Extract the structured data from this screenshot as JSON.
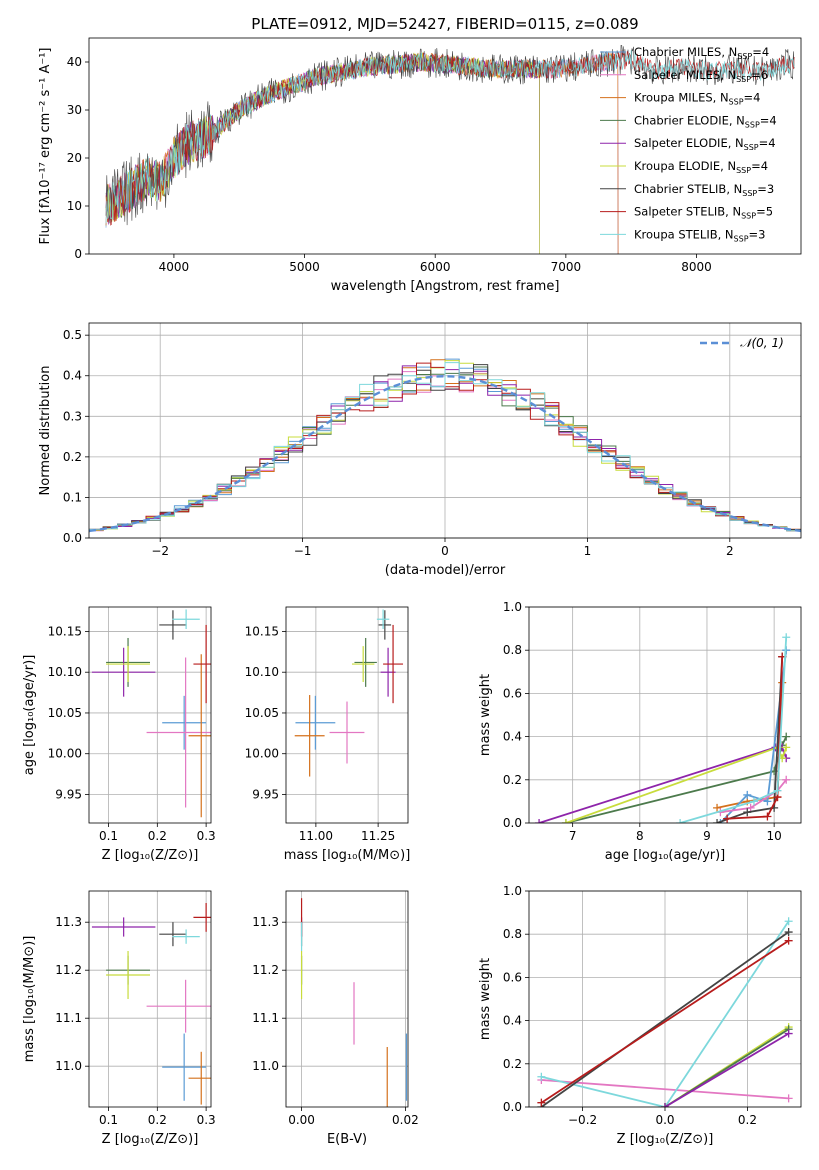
{
  "figure": {
    "title": "PLATE=0912, MJD=52427, FIBERID=0115, z=0.089"
  },
  "colors": {
    "Chabrier MILES": "#5b9bd5",
    "Salpeter MILES": "#e377c2",
    "Kroupa MILES": "#d4711c",
    "Chabrier ELODIE": "#4c7a4c",
    "Salpeter ELODIE": "#8e24aa",
    "Kroupa ELODIE": "#c8dc3c",
    "Chabrier STELIB": "#444444",
    "Salpeter STELIB": "#b71c1c",
    "Kroupa STELIB": "#7dd8dc",
    "normal": "#5b8fd6",
    "grid": "#b0b0b0"
  },
  "chart_data": [
    {
      "id": "spectrum",
      "type": "line",
      "title": "PLATE=0912, MJD=52427, FIBERID=0115, z=0.089",
      "xlabel": "wavelength [Angstrom, rest frame]",
      "ylabel": "Flux [fλ10⁻¹⁷ erg cm⁻² s⁻¹ A⁻¹]",
      "xlim": [
        3350,
        8800
      ],
      "ylim": [
        0,
        45
      ],
      "xticks": [
        4000,
        5000,
        6000,
        7000,
        8000
      ],
      "yticks": [
        0,
        10,
        20,
        30,
        40
      ],
      "grid": false,
      "legend": "top-right",
      "continuum": {
        "x": [
          3500,
          3600,
          3700,
          3800,
          3900,
          4000,
          4100,
          4200,
          4300,
          4400,
          4500,
          4700,
          4900,
          5100,
          5300,
          5500,
          5700,
          5900,
          6100,
          6300,
          6500,
          6700,
          6900,
          7100,
          7300,
          7500,
          7700,
          7900,
          8100,
          8300,
          8500,
          8700
        ],
        "y": [
          10,
          12,
          14,
          16,
          15,
          20,
          23,
          24,
          25,
          28,
          30,
          33,
          35,
          37,
          38,
          39,
          39.5,
          40,
          39.5,
          39,
          38.5,
          38.5,
          38.5,
          39,
          40,
          40.5,
          38,
          39,
          38,
          38.5,
          38,
          39.5
        ]
      },
      "series": [
        {
          "name": "Chabrier MILES",
          "label": "Chabrier MILES, N",
          "nssp": "=4",
          "xmax": 7400
        },
        {
          "name": "Salpeter MILES",
          "label": "Salpeter MILES, N",
          "nssp": "=6",
          "xmax": 7400
        },
        {
          "name": "Kroupa MILES",
          "label": "Kroupa MILES, N",
          "nssp": "=4",
          "xmax": 7400
        },
        {
          "name": "Chabrier ELODIE",
          "label": "Chabrier ELODIE, N",
          "nssp": "=4",
          "xmax": 6800
        },
        {
          "name": "Salpeter ELODIE",
          "label": "Salpeter ELODIE, N",
          "nssp": "=4",
          "xmax": 6800
        },
        {
          "name": "Kroupa ELODIE",
          "label": "Kroupa ELODIE, N",
          "nssp": "=4",
          "xmax": 6800
        },
        {
          "name": "Chabrier STELIB",
          "label": "Chabrier STELIB, N",
          "nssp": "=3",
          "xmax": 8750
        },
        {
          "name": "Salpeter STELIB",
          "label": "Salpeter STELIB, N",
          "nssp": "=5",
          "xmax": 8750
        },
        {
          "name": "Kroupa STELIB",
          "label": "Kroupa STELIB, N",
          "nssp": "=3",
          "xmax": 8750
        }
      ]
    },
    {
      "id": "residuals",
      "type": "histogram",
      "xlabel": "(data-model)/error",
      "ylabel": "Normed distribution",
      "xlim": [
        -2.5,
        2.5
      ],
      "ylim": [
        0,
        0.53
      ],
      "xticks": [
        -2,
        -1,
        0,
        1,
        2
      ],
      "yticks": [
        0.0,
        0.1,
        0.2,
        0.3,
        0.4,
        0.5
      ],
      "grid": true,
      "legend": "top-right",
      "normal_label": "𝒩(0, 1)",
      "bin_width": 0.1
    },
    {
      "id": "age_vs_Z",
      "type": "errorbar",
      "xlabel": "Z [log₁₀(Z/Z⊙)]",
      "ylabel": "age  [log₁₀(age/yr)]",
      "xlim": [
        0.06,
        0.31
      ],
      "ylim": [
        9.915,
        10.18
      ],
      "xticks": [
        0.1,
        0.2,
        0.3
      ],
      "yticks": [
        9.95,
        10.0,
        10.05,
        10.1,
        10.15
      ],
      "grid": true,
      "points": [
        {
          "series": "Chabrier MILES",
          "x": 0.255,
          "y": 10.038,
          "xerr": 0.045,
          "yerr": 0.033
        },
        {
          "series": "Salpeter MILES",
          "x": 0.258,
          "y": 10.026,
          "xerr": 0.08,
          "yerr": 0.092
        },
        {
          "series": "Kroupa MILES",
          "x": 0.29,
          "y": 10.022,
          "xerr": 0.026,
          "yerr": 0.1
        },
        {
          "series": "Chabrier ELODIE",
          "x": 0.14,
          "y": 10.112,
          "xerr": 0.045,
          "yerr": 0.03
        },
        {
          "series": "Salpeter ELODIE",
          "x": 0.131,
          "y": 10.1,
          "xerr": 0.065,
          "yerr": 0.03
        },
        {
          "series": "Kroupa ELODIE",
          "x": 0.14,
          "y": 10.11,
          "xerr": 0.045,
          "yerr": 0.022
        },
        {
          "series": "Chabrier STELIB",
          "x": 0.232,
          "y": 10.158,
          "xerr": 0.028,
          "yerr": 0.018
        },
        {
          "series": "Salpeter STELIB",
          "x": 0.3,
          "y": 10.11,
          "xerr": 0.026,
          "yerr": 0.048
        },
        {
          "series": "Kroupa STELIB",
          "x": 0.259,
          "y": 10.165,
          "xerr": 0.028,
          "yerr": 0.012
        }
      ]
    },
    {
      "id": "age_vs_mass",
      "type": "errorbar",
      "xlabel": "mass [log₁₀(M/M⊙)]",
      "ylabel": "",
      "xlim": [
        10.88,
        11.37
      ],
      "ylim": [
        9.915,
        10.18
      ],
      "xticks": [
        11.0,
        11.25
      ],
      "yticks": [
        9.95,
        10.0,
        10.05,
        10.1,
        10.15
      ],
      "grid": true,
      "points": [
        {
          "series": "Chabrier MILES",
          "x": 10.998,
          "y": 10.038,
          "xerr": 0.08,
          "yerr": 0.033
        },
        {
          "series": "Salpeter MILES",
          "x": 11.125,
          "y": 10.026,
          "xerr": 0.07,
          "yerr": 0.038
        },
        {
          "series": "Kroupa MILES",
          "x": 10.975,
          "y": 10.022,
          "xerr": 0.06,
          "yerr": 0.05
        },
        {
          "series": "Chabrier ELODIE",
          "x": 11.2,
          "y": 10.112,
          "xerr": 0.045,
          "yerr": 0.03
        },
        {
          "series": "Salpeter ELODIE",
          "x": 11.29,
          "y": 10.1,
          "xerr": 0.03,
          "yerr": 0.03
        },
        {
          "series": "Kroupa ELODIE",
          "x": 11.19,
          "y": 10.11,
          "xerr": 0.045,
          "yerr": 0.022
        },
        {
          "series": "Chabrier STELIB",
          "x": 11.277,
          "y": 10.158,
          "xerr": 0.025,
          "yerr": 0.018
        },
        {
          "series": "Salpeter STELIB",
          "x": 11.31,
          "y": 10.11,
          "xerr": 0.04,
          "yerr": 0.048
        },
        {
          "series": "Kroupa STELIB",
          "x": 11.27,
          "y": 10.165,
          "xerr": 0.025,
          "yerr": 0.012
        }
      ]
    },
    {
      "id": "weight_vs_age",
      "type": "line",
      "xlabel": "age  [log₁₀(age/yr)]",
      "ylabel": "mass weight",
      "xlim": [
        6.35,
        10.4
      ],
      "ylim": [
        0,
        1
      ],
      "xticks": [
        7,
        8,
        9,
        10
      ],
      "yticks": [
        0.0,
        0.2,
        0.4,
        0.6,
        0.8,
        1.0
      ],
      "grid": true,
      "series": [
        {
          "name": "Chabrier ELODIE",
          "x": [
            6.9,
            10.0,
            10.12,
            10.18
          ],
          "y": [
            0.0,
            0.24,
            0.36,
            0.4
          ]
        },
        {
          "name": "Salpeter ELODIE",
          "x": [
            6.5,
            10.02,
            10.12,
            10.18
          ],
          "y": [
            0.0,
            0.35,
            0.35,
            0.3
          ]
        },
        {
          "name": "Kroupa ELODIE",
          "x": [
            6.9,
            10.05,
            10.12,
            10.18
          ],
          "y": [
            0.0,
            0.35,
            0.3,
            0.35
          ]
        },
        {
          "name": "Kroupa MILES",
          "x": [
            9.15,
            9.6,
            10.05,
            10.12
          ],
          "y": [
            0.07,
            0.1,
            0.12,
            0.65
          ]
        },
        {
          "name": "Chabrier MILES",
          "x": [
            9.2,
            9.6,
            9.9,
            10.18
          ],
          "y": [
            0.0,
            0.13,
            0.1,
            0.8
          ]
        },
        {
          "name": "Salpeter MILES",
          "x": [
            9.2,
            9.65,
            10.05,
            10.18
          ],
          "y": [
            0.05,
            0.07,
            0.15,
            0.2
          ]
        },
        {
          "name": "Chabrier STELIB",
          "x": [
            9.15,
            9.6,
            10.0,
            10.12
          ],
          "y": [
            0.0,
            0.05,
            0.07,
            0.77
          ]
        },
        {
          "name": "Salpeter STELIB",
          "x": [
            9.3,
            9.9,
            10.05,
            10.12
          ],
          "y": [
            0.02,
            0.03,
            0.12,
            0.77
          ]
        },
        {
          "name": "Kroupa STELIB",
          "x": [
            8.6,
            9.7,
            10.05,
            10.18
          ],
          "y": [
            0.0,
            0.1,
            0.15,
            0.86
          ]
        }
      ]
    },
    {
      "id": "mass_vs_Z",
      "type": "errorbar",
      "xlabel": "Z [log₁₀(Z/Z⊙)]",
      "ylabel": "mass [log₁₀(M/M⊙)]",
      "xlim": [
        0.06,
        0.31
      ],
      "ylim": [
        10.915,
        11.365
      ],
      "xticks": [
        0.1,
        0.2,
        0.3
      ],
      "yticks": [
        11.0,
        11.1,
        11.2,
        11.3
      ],
      "grid": true,
      "points": [
        {
          "series": "Chabrier MILES",
          "x": 0.255,
          "y": 10.998,
          "xerr": 0.045,
          "yerr": 0.07
        },
        {
          "series": "Salpeter MILES",
          "x": 0.258,
          "y": 11.125,
          "xerr": 0.08,
          "yerr": 0.055
        },
        {
          "series": "Kroupa MILES",
          "x": 0.29,
          "y": 10.975,
          "xerr": 0.026,
          "yerr": 0.055
        },
        {
          "series": "Chabrier ELODIE",
          "x": 0.14,
          "y": 11.2,
          "xerr": 0.045,
          "yerr": 0.03
        },
        {
          "series": "Salpeter ELODIE",
          "x": 0.131,
          "y": 11.29,
          "xerr": 0.065,
          "yerr": 0.02
        },
        {
          "series": "Kroupa ELODIE",
          "x": 0.14,
          "y": 11.19,
          "xerr": 0.045,
          "yerr": 0.05
        },
        {
          "series": "Chabrier STELIB",
          "x": 0.232,
          "y": 11.275,
          "xerr": 0.028,
          "yerr": 0.025
        },
        {
          "series": "Salpeter STELIB",
          "x": 0.3,
          "y": 11.31,
          "xerr": 0.026,
          "yerr": 0.03
        },
        {
          "series": "Kroupa STELIB",
          "x": 0.259,
          "y": 11.27,
          "xerr": 0.028,
          "yerr": 0.015
        }
      ]
    },
    {
      "id": "mass_vs_ebv",
      "type": "errorbar",
      "xlabel": "E(B-V)",
      "ylabel": "",
      "xlim": [
        -0.003,
        0.0205
      ],
      "ylim": [
        10.915,
        11.365
      ],
      "xticks": [
        0.0,
        0.02
      ],
      "yticks": [
        11.0,
        11.1,
        11.2,
        11.3
      ],
      "grid": true,
      "points": [
        {
          "series": "Chabrier MILES",
          "x": 0.0202,
          "y": 10.998,
          "xerr": 0,
          "yerr": 0.07
        },
        {
          "series": "Salpeter MILES",
          "x": 0.0101,
          "y": 11.11,
          "xerr": 0,
          "yerr": 0.065
        },
        {
          "series": "Kroupa MILES",
          "x": 0.0165,
          "y": 10.975,
          "xerr": 0,
          "yerr": 0.065
        },
        {
          "series": "Chabrier ELODIE",
          "x": 0.0,
          "y": 11.2,
          "xerr": 0,
          "yerr": 0.03
        },
        {
          "series": "Salpeter ELODIE",
          "x": 0.0,
          "y": 11.29,
          "xerr": 0,
          "yerr": 0.02
        },
        {
          "series": "Kroupa ELODIE",
          "x": 0.0,
          "y": 11.19,
          "xerr": 0,
          "yerr": 0.05
        },
        {
          "series": "Chabrier STELIB",
          "x": 0.0,
          "y": 11.275,
          "xerr": 0,
          "yerr": 0.025
        },
        {
          "series": "Salpeter STELIB",
          "x": 0.0,
          "y": 11.31,
          "xerr": 0,
          "yerr": 0.04
        },
        {
          "series": "Kroupa STELIB",
          "x": 0.0,
          "y": 11.27,
          "xerr": 0,
          "yerr": 0.03
        }
      ]
    },
    {
      "id": "weight_vs_Z",
      "type": "line",
      "xlabel": "Z [log₁₀(Z/Z⊙)]",
      "ylabel": "mass weight",
      "xlim": [
        -0.33,
        0.33
      ],
      "ylim": [
        0,
        1
      ],
      "xticks": [
        -0.2,
        0.0,
        0.2
      ],
      "yticks": [
        0.0,
        0.2,
        0.4,
        0.6,
        0.8,
        1.0
      ],
      "grid": true,
      "series": [
        {
          "name": "Salpeter MILES",
          "x": [
            -0.3,
            0.3
          ],
          "y": [
            0.125,
            0.04
          ]
        },
        {
          "name": "Kroupa STELIB",
          "x": [
            -0.3,
            0.0,
            0.3
          ],
          "y": [
            0.14,
            0.0,
            0.86
          ]
        },
        {
          "name": "Chabrier STELIB",
          "x": [
            -0.3,
            0.3
          ],
          "y": [
            0.0,
            0.81
          ]
        },
        {
          "name": "Salpeter STELIB",
          "x": [
            -0.3,
            0.3
          ],
          "y": [
            0.02,
            0.77
          ]
        },
        {
          "name": "Kroupa ELODIE",
          "x": [
            0.0,
            0.3
          ],
          "y": [
            0.0,
            0.37
          ]
        },
        {
          "name": "Chabrier ELODIE",
          "x": [
            0.0,
            0.3
          ],
          "y": [
            0.0,
            0.36
          ]
        },
        {
          "name": "Salpeter ELODIE",
          "x": [
            0.0,
            0.3
          ],
          "y": [
            0.0,
            0.34
          ]
        }
      ]
    }
  ]
}
